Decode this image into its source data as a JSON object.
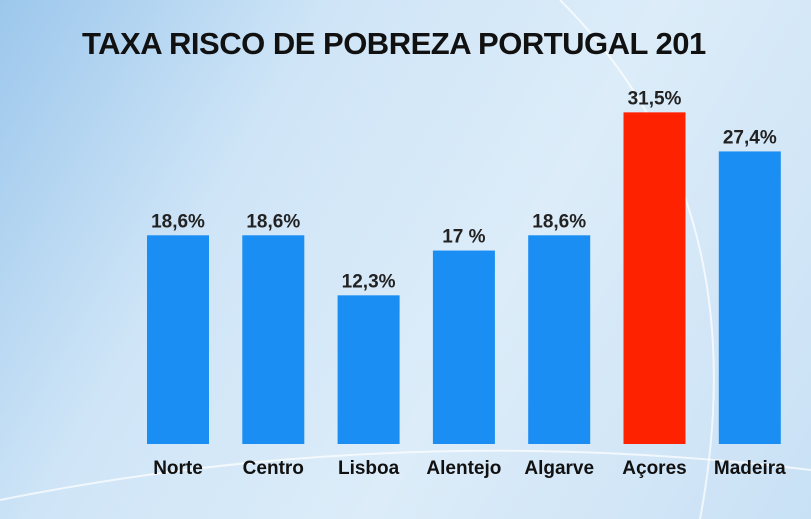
{
  "chart_data": {
    "type": "bar",
    "title": "TAXA RISCO DE POBREZA PORTUGAL 201",
    "categories": [
      "Norte",
      "Centro",
      "Lisboa",
      "Alentejo",
      "Algarve",
      "Açores",
      "Madeira"
    ],
    "values": [
      18.6,
      18.6,
      12.3,
      17,
      18.6,
      31.5,
      27.4
    ],
    "value_labels": [
      "18,6%",
      "18,6%",
      "12,3%",
      "17 %",
      "18,6%",
      "31,5%",
      "27,4%"
    ],
    "colors": [
      "#1a8ef2",
      "#1a8ef2",
      "#1a8ef2",
      "#1a8ef2",
      "#1a8ef2",
      "#ff2200",
      "#1a8ef2"
    ],
    "grid": false,
    "xlabel": "",
    "ylabel": ""
  }
}
